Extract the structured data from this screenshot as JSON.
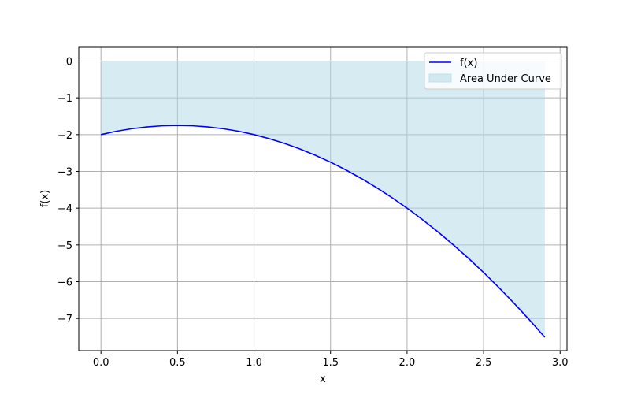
{
  "chart_data": {
    "type": "area",
    "title": "",
    "xlabel": "x",
    "ylabel": "f(x)",
    "xlim": [
      -0.145,
      3.045
    ],
    "ylim": [
      -7.875,
      0.375
    ],
    "xticks": [
      0.0,
      0.5,
      1.0,
      1.5,
      2.0,
      2.5,
      3.0
    ],
    "xtick_labels": [
      "0.0",
      "0.5",
      "1.0",
      "1.5",
      "2.0",
      "2.5",
      "3.0"
    ],
    "yticks": [
      0,
      -1,
      -2,
      -3,
      -4,
      -5,
      -6,
      -7
    ],
    "ytick_labels": [
      "0",
      "−1",
      "−2",
      "−3",
      "−4",
      "−5",
      "−6",
      "−7"
    ],
    "grid": true,
    "legend_position": "top-right",
    "series": [
      {
        "name": "f(x)",
        "kind": "line",
        "color": "#0000ff",
        "x": [
          0.0,
          0.1,
          0.2,
          0.3,
          0.4,
          0.5,
          0.6,
          0.7,
          0.8,
          0.9,
          1.0,
          1.1,
          1.2,
          1.3,
          1.4,
          1.5,
          1.6,
          1.7,
          1.8,
          1.9,
          2.0,
          2.1,
          2.2,
          2.3,
          2.4,
          2.5,
          2.6,
          2.7,
          2.8,
          2.9
        ],
        "y": [
          -2.0,
          -1.91,
          -1.84,
          -1.79,
          -1.76,
          -1.75,
          -1.76,
          -1.79,
          -1.84,
          -1.91,
          -2.0,
          -2.11,
          -2.24,
          -2.39,
          -2.56,
          -2.75,
          -2.96,
          -3.19,
          -3.44,
          -3.71,
          -4.0,
          -4.31,
          -4.64,
          -4.99,
          -5.36,
          -5.75,
          -6.16,
          -6.59,
          -7.04,
          -7.51
        ]
      },
      {
        "name": "Area Under Curve",
        "kind": "fill",
        "color": "#add8e6",
        "baseline": 0
      }
    ]
  }
}
